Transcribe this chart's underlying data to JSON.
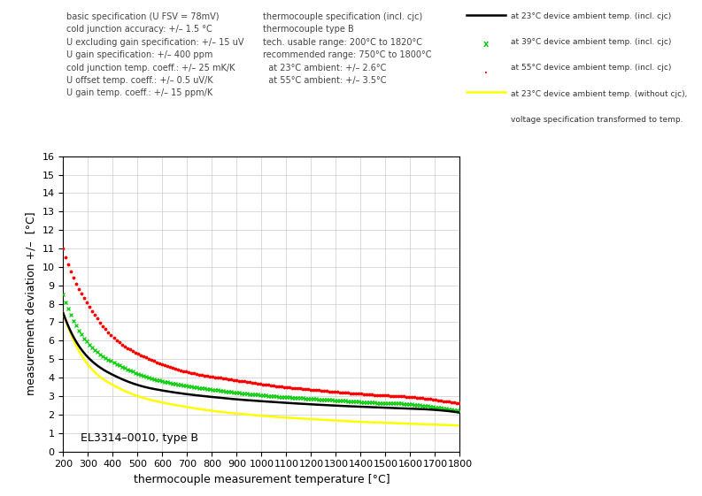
{
  "title": "",
  "xlabel": "thermocouple measurement temperature [°C]",
  "ylabel": "measurement deviation +/–  [°C]",
  "xlim": [
    200,
    1800
  ],
  "ylim": [
    0,
    16
  ],
  "xticks": [
    200,
    300,
    400,
    500,
    600,
    700,
    800,
    900,
    1000,
    1100,
    1200,
    1300,
    1400,
    1500,
    1600,
    1700,
    1800
  ],
  "yticks": [
    0,
    1,
    2,
    3,
    4,
    5,
    6,
    7,
    8,
    9,
    10,
    11,
    12,
    13,
    14,
    15,
    16
  ],
  "annotation_label": "EL3314–0010, type B",
  "text_block1": "basic specification (U FSV = 78mV)\ncold junction accuracy: +/– 1.5 °C\nU excluding gain specification: +/– 15 uV\nU gain specification: +/– 400 ppm\ncold junction temp. coeff.: +/– 25 mK/K\nU offset temp. coeff.: +/– 0.5 uV/K\nU gain temp. coeff.: +/– 15 ppm/K",
  "text_block2": "thermocouple specification (incl. cjc)\nthermocouple type B\ntech. usable range: 200°C to 1820°C\nrecommended range: 750°C to 1800°C\n  at 23°C ambient: +/– 2.6°C\n  at 55°C ambient: +/– 3.5°C",
  "legend_line1": "at 23°C device ambient temp. (incl. cjc)",
  "legend_line2": "at 39°C device ambient temp. (incl. cjc)",
  "legend_line3": "at 55°C device ambient temp. (incl. cjc)",
  "legend_line4a": "at 23°C device ambient temp. (without cjc),",
  "legend_line4b": "voltage specification transformed to temp.",
  "background_color": "#ffffff",
  "grid_color": "#cccccc",
  "T_data": [
    200,
    250,
    300,
    400,
    500,
    600,
    700,
    800,
    900,
    1000,
    1100,
    1200,
    1300,
    1400,
    1500,
    1600,
    1700,
    1800
  ],
  "y_yellow": [
    7.5,
    5.8,
    4.7,
    3.6,
    3.0,
    2.65,
    2.4,
    2.2,
    2.05,
    1.93,
    1.83,
    1.75,
    1.67,
    1.6,
    1.55,
    1.5,
    1.45,
    1.4
  ],
  "y_black": [
    7.5,
    6.0,
    5.1,
    4.15,
    3.6,
    3.3,
    3.1,
    2.95,
    2.82,
    2.72,
    2.63,
    2.55,
    2.48,
    2.42,
    2.37,
    2.32,
    2.25,
    2.1
  ],
  "y_green": [
    8.5,
    6.9,
    5.9,
    4.85,
    4.2,
    3.8,
    3.55,
    3.35,
    3.18,
    3.05,
    2.94,
    2.85,
    2.77,
    2.68,
    2.62,
    2.56,
    2.4,
    2.2
  ],
  "y_red": [
    11.0,
    9.2,
    8.0,
    6.2,
    5.3,
    4.7,
    4.3,
    4.05,
    3.85,
    3.65,
    3.48,
    3.35,
    3.22,
    3.12,
    3.03,
    2.95,
    2.8,
    2.6
  ]
}
